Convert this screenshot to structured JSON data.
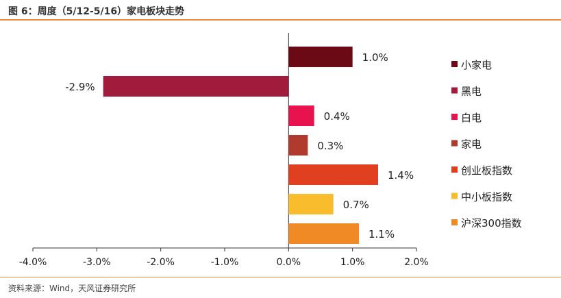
{
  "header": {
    "title": "图 6：周度（5/12-5/16）家电板块走势"
  },
  "footer": {
    "source": "资料来源：Wind，天风证券研究所"
  },
  "chart_data": {
    "type": "bar",
    "orientation": "horizontal",
    "categories": [
      "小家电",
      "黑电",
      "白电",
      "家电",
      "创业板指数",
      "中小板指数",
      "沪深300指数"
    ],
    "values": [
      1.0,
      -2.9,
      0.4,
      0.3,
      1.4,
      0.7,
      1.1
    ],
    "value_labels": [
      "1.0%",
      "-2.9%",
      "0.4%",
      "0.3%",
      "1.4%",
      "0.7%",
      "1.1%"
    ],
    "colors": [
      "#6b0a14",
      "#a01b3c",
      "#e8124f",
      "#b03a2e",
      "#e0401f",
      "#f8bc2c",
      "#f08a24"
    ],
    "xlim": [
      -4.0,
      2.0
    ],
    "xticks": [
      -4.0,
      -3.0,
      -2.0,
      -1.0,
      0.0,
      1.0,
      2.0
    ],
    "xtick_labels": [
      "-4.0%",
      "-3.0%",
      "-2.0%",
      "-1.0%",
      "0.0%",
      "1.0%",
      "2.0%"
    ],
    "legend": [
      "小家电",
      "黑电",
      "白电",
      "家电",
      "创业板指数",
      "中小板指数",
      "沪深300指数"
    ],
    "legend_position": "right",
    "title": "",
    "xlabel": "",
    "ylabel": "",
    "grid": false
  }
}
